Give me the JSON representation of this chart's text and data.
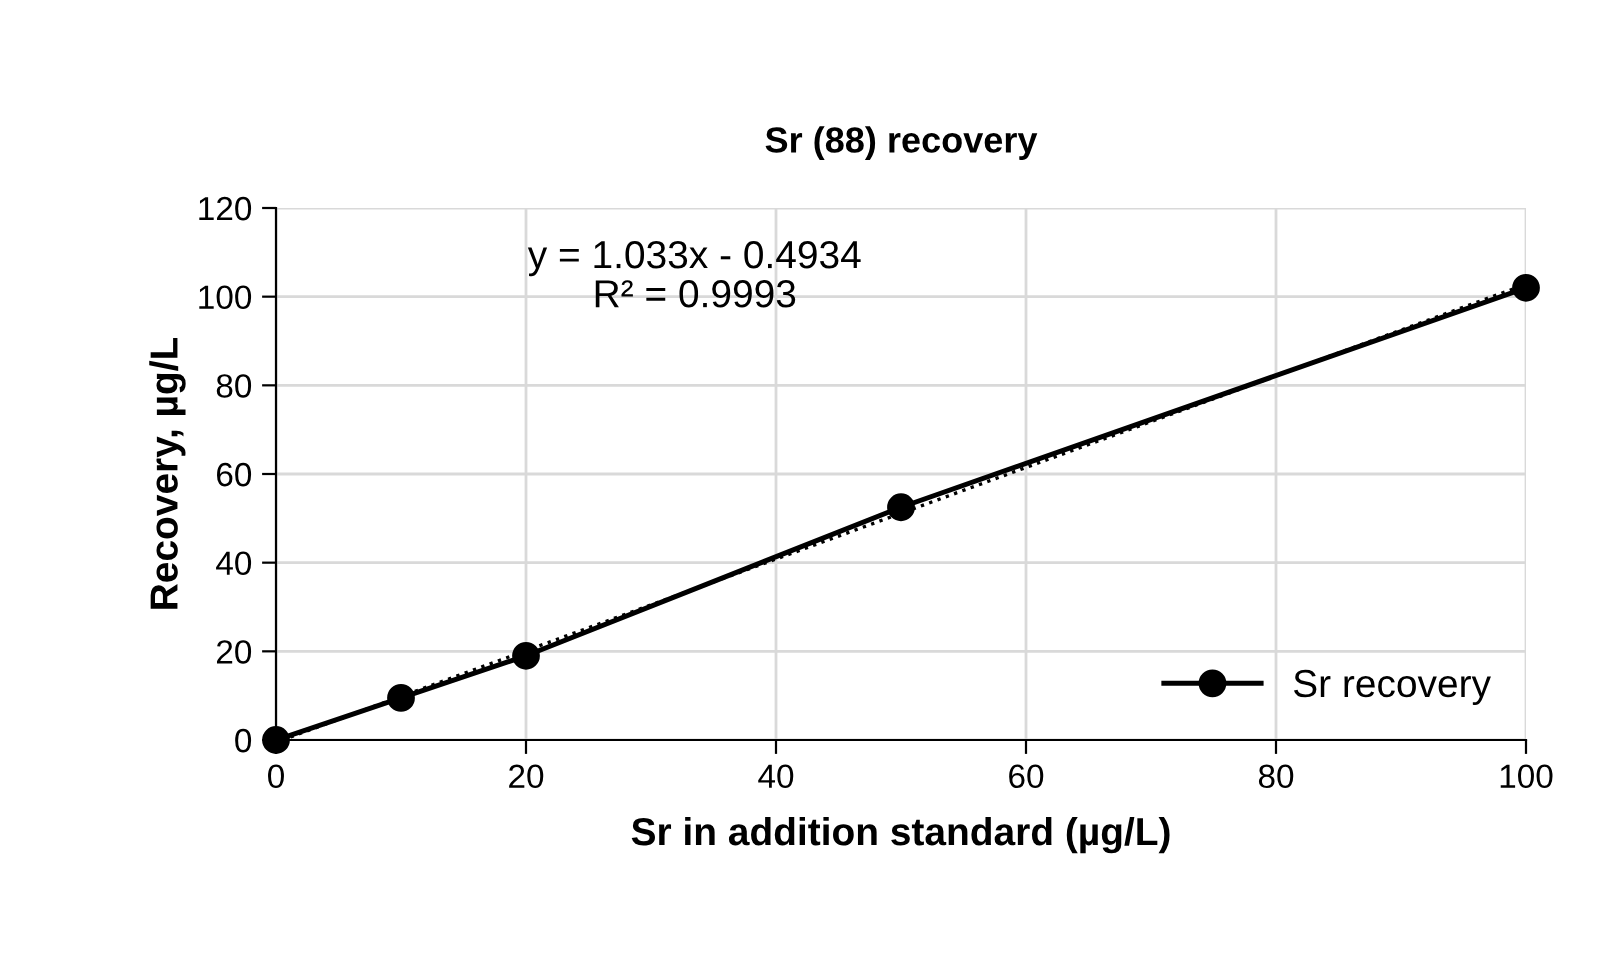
{
  "chart_data": {
    "type": "line",
    "title": "Sr (88) recovery",
    "xlabel": "Sr in addition standard (µg/L)",
    "ylabel": "Recovery, µg/L",
    "x": [
      0,
      10,
      20,
      50,
      100
    ],
    "series": [
      {
        "name": "Sr recovery",
        "color": "#000000",
        "values": [
          0,
          9.5,
          19,
          52.5,
          102
        ],
        "marker": "circle",
        "line_style": "solid"
      },
      {
        "type": "line",
        "color": "#000000",
        "x": [
          0.5,
          100
        ],
        "values": [
          0,
          102.8
        ],
        "marker": "none",
        "line_style": "dotted"
      }
    ],
    "annotations": [
      "y = 1.033x - 0.4934\nR² = 0.9993"
    ],
    "xlim": [
      0,
      100
    ],
    "xticks": [
      0,
      20,
      40,
      60,
      80,
      100
    ],
    "ylim": [
      0,
      120
    ],
    "yticks": [
      0,
      20,
      40,
      60,
      80,
      100,
      120
    ],
    "grid": true,
    "legend": "bottom right"
  }
}
